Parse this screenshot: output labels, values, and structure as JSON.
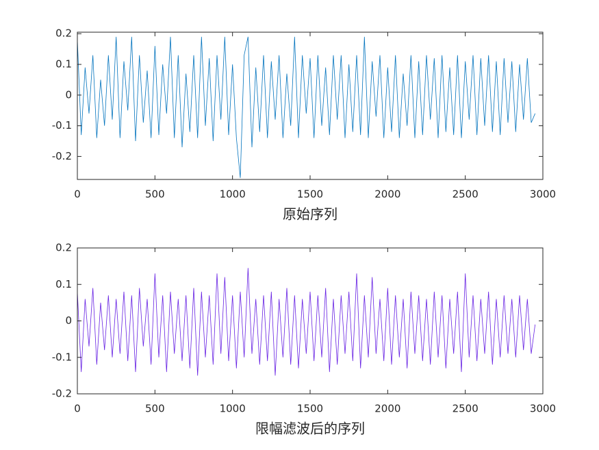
{
  "chart_data": [
    {
      "type": "line",
      "xlabel": "原始序列",
      "color": "#0072BD",
      "xlim": [
        0,
        3000
      ],
      "ylim": [
        -0.275,
        0.205
      ],
      "xticks": [
        0,
        500,
        1000,
        1500,
        2000,
        2500,
        3000
      ],
      "yticks": [
        -0.2,
        -0.1,
        0,
        0.1,
        0.2
      ],
      "x": [
        0,
        25,
        50,
        75,
        100,
        125,
        150,
        175,
        200,
        225,
        250,
        275,
        300,
        325,
        350,
        375,
        400,
        425,
        450,
        475,
        500,
        525,
        550,
        575,
        600,
        625,
        650,
        675,
        700,
        725,
        750,
        775,
        800,
        825,
        850,
        875,
        900,
        925,
        950,
        975,
        1000,
        1025,
        1050,
        1075,
        1100,
        1125,
        1150,
        1175,
        1200,
        1225,
        1250,
        1275,
        1300,
        1325,
        1350,
        1375,
        1400,
        1425,
        1450,
        1475,
        1500,
        1525,
        1550,
        1575,
        1600,
        1625,
        1650,
        1675,
        1700,
        1725,
        1750,
        1775,
        1800,
        1825,
        1850,
        1875,
        1900,
        1925,
        1950,
        1975,
        2000,
        2025,
        2050,
        2075,
        2100,
        2125,
        2150,
        2175,
        2200,
        2225,
        2250,
        2275,
        2300,
        2325,
        2350,
        2375,
        2400,
        2425,
        2450,
        2475,
        2500,
        2525,
        2550,
        2575,
        2600,
        2625,
        2650,
        2675,
        2700,
        2725,
        2750,
        2775,
        2800,
        2825,
        2850,
        2875,
        2900,
        2925,
        2950
      ],
      "values": [
        0.18,
        -0.13,
        0.09,
        -0.06,
        0.13,
        -0.14,
        0.05,
        -0.1,
        0.13,
        -0.08,
        0.19,
        -0.14,
        0.11,
        -0.05,
        0.19,
        -0.15,
        0.13,
        -0.09,
        0.08,
        -0.14,
        0.16,
        -0.13,
        0.1,
        -0.06,
        0.19,
        -0.14,
        0.13,
        -0.17,
        0.07,
        -0.12,
        0.13,
        -0.14,
        0.19,
        -0.1,
        0.12,
        -0.15,
        0.13,
        -0.08,
        0.19,
        -0.13,
        0.1,
        -0.14,
        -0.27,
        0.13,
        0.19,
        -0.17,
        0.09,
        -0.12,
        0.13,
        -0.14,
        0.11,
        -0.08,
        0.13,
        -0.14,
        0.07,
        -0.1,
        0.19,
        -0.14,
        0.13,
        -0.06,
        0.12,
        -0.14,
        0.13,
        -0.1,
        0.09,
        -0.13,
        0.13,
        -0.08,
        0.13,
        -0.14,
        0.1,
        -0.12,
        0.13,
        -0.13,
        0.19,
        -0.14,
        0.11,
        -0.07,
        0.13,
        -0.14,
        0.09,
        -0.12,
        0.13,
        -0.14,
        0.07,
        -0.1,
        0.13,
        -0.14,
        0.11,
        -0.13,
        0.13,
        -0.08,
        0.12,
        -0.14,
        0.13,
        -0.12,
        0.09,
        -0.13,
        0.13,
        -0.14,
        0.11,
        -0.08,
        0.13,
        -0.13,
        0.12,
        -0.1,
        0.13,
        -0.12,
        0.11,
        -0.13,
        0.12,
        -0.09,
        0.11,
        -0.12,
        0.1,
        -0.08,
        0.12,
        -0.09,
        -0.06
      ]
    },
    {
      "type": "line",
      "xlabel": "限幅滤波后的序列",
      "color": "#651FE3",
      "xlim": [
        0,
        3000
      ],
      "ylim": [
        -0.2,
        0.2
      ],
      "xticks": [
        0,
        500,
        1000,
        1500,
        2000,
        2500,
        3000
      ],
      "yticks": [
        -0.2,
        -0.1,
        0,
        0.1,
        0.2
      ],
      "x": [
        0,
        25,
        50,
        75,
        100,
        125,
        150,
        175,
        200,
        225,
        250,
        275,
        300,
        325,
        350,
        375,
        400,
        425,
        450,
        475,
        500,
        525,
        550,
        575,
        600,
        625,
        650,
        675,
        700,
        725,
        750,
        775,
        800,
        825,
        850,
        875,
        900,
        925,
        950,
        975,
        1000,
        1025,
        1050,
        1075,
        1100,
        1125,
        1150,
        1175,
        1200,
        1225,
        1250,
        1275,
        1300,
        1325,
        1350,
        1375,
        1400,
        1425,
        1450,
        1475,
        1500,
        1525,
        1550,
        1575,
        1600,
        1625,
        1650,
        1675,
        1700,
        1725,
        1750,
        1775,
        1800,
        1825,
        1850,
        1875,
        1900,
        1925,
        1950,
        1975,
        2000,
        2025,
        2050,
        2075,
        2100,
        2125,
        2150,
        2175,
        2200,
        2225,
        2250,
        2275,
        2300,
        2325,
        2350,
        2375,
        2400,
        2425,
        2450,
        2475,
        2500,
        2525,
        2550,
        2575,
        2600,
        2625,
        2650,
        2675,
        2700,
        2725,
        2750,
        2775,
        2800,
        2825,
        2850,
        2875,
        2900,
        2925,
        2950
      ],
      "values": [
        0.08,
        -0.14,
        0.06,
        -0.07,
        0.09,
        -0.12,
        0.05,
        -0.08,
        0.07,
        -0.1,
        0.06,
        -0.09,
        0.08,
        -0.11,
        0.07,
        -0.14,
        0.09,
        -0.07,
        0.06,
        -0.12,
        0.13,
        -0.1,
        0.07,
        -0.14,
        0.08,
        -0.09,
        0.06,
        -0.11,
        0.07,
        -0.13,
        0.09,
        -0.15,
        0.08,
        -0.1,
        0.07,
        -0.12,
        0.13,
        -0.09,
        0.12,
        -0.11,
        0.07,
        -0.13,
        0.08,
        -0.1,
        0.145,
        -0.09,
        0.06,
        -0.12,
        0.07,
        -0.11,
        0.08,
        -0.15,
        0.06,
        -0.1,
        0.09,
        -0.12,
        0.07,
        -0.13,
        0.06,
        -0.09,
        0.08,
        -0.11,
        0.07,
        -0.1,
        0.09,
        -0.14,
        0.06,
        -0.12,
        0.07,
        -0.09,
        0.08,
        -0.11,
        0.13,
        -0.13,
        0.07,
        -0.1,
        0.12,
        -0.09,
        0.06,
        -0.11,
        0.09,
        -0.12,
        0.07,
        -0.1,
        0.06,
        -0.13,
        0.08,
        -0.09,
        0.07,
        -0.11,
        0.06,
        -0.12,
        0.08,
        -0.1,
        0.07,
        -0.13,
        0.06,
        -0.09,
        0.08,
        -0.14,
        0.13,
        -0.1,
        0.07,
        -0.11,
        0.06,
        -0.09,
        0.08,
        -0.12,
        0.06,
        -0.1,
        0.07,
        -0.09,
        0.06,
        -0.1,
        0.07,
        -0.08,
        0.06,
        -0.09,
        -0.01
      ]
    }
  ]
}
